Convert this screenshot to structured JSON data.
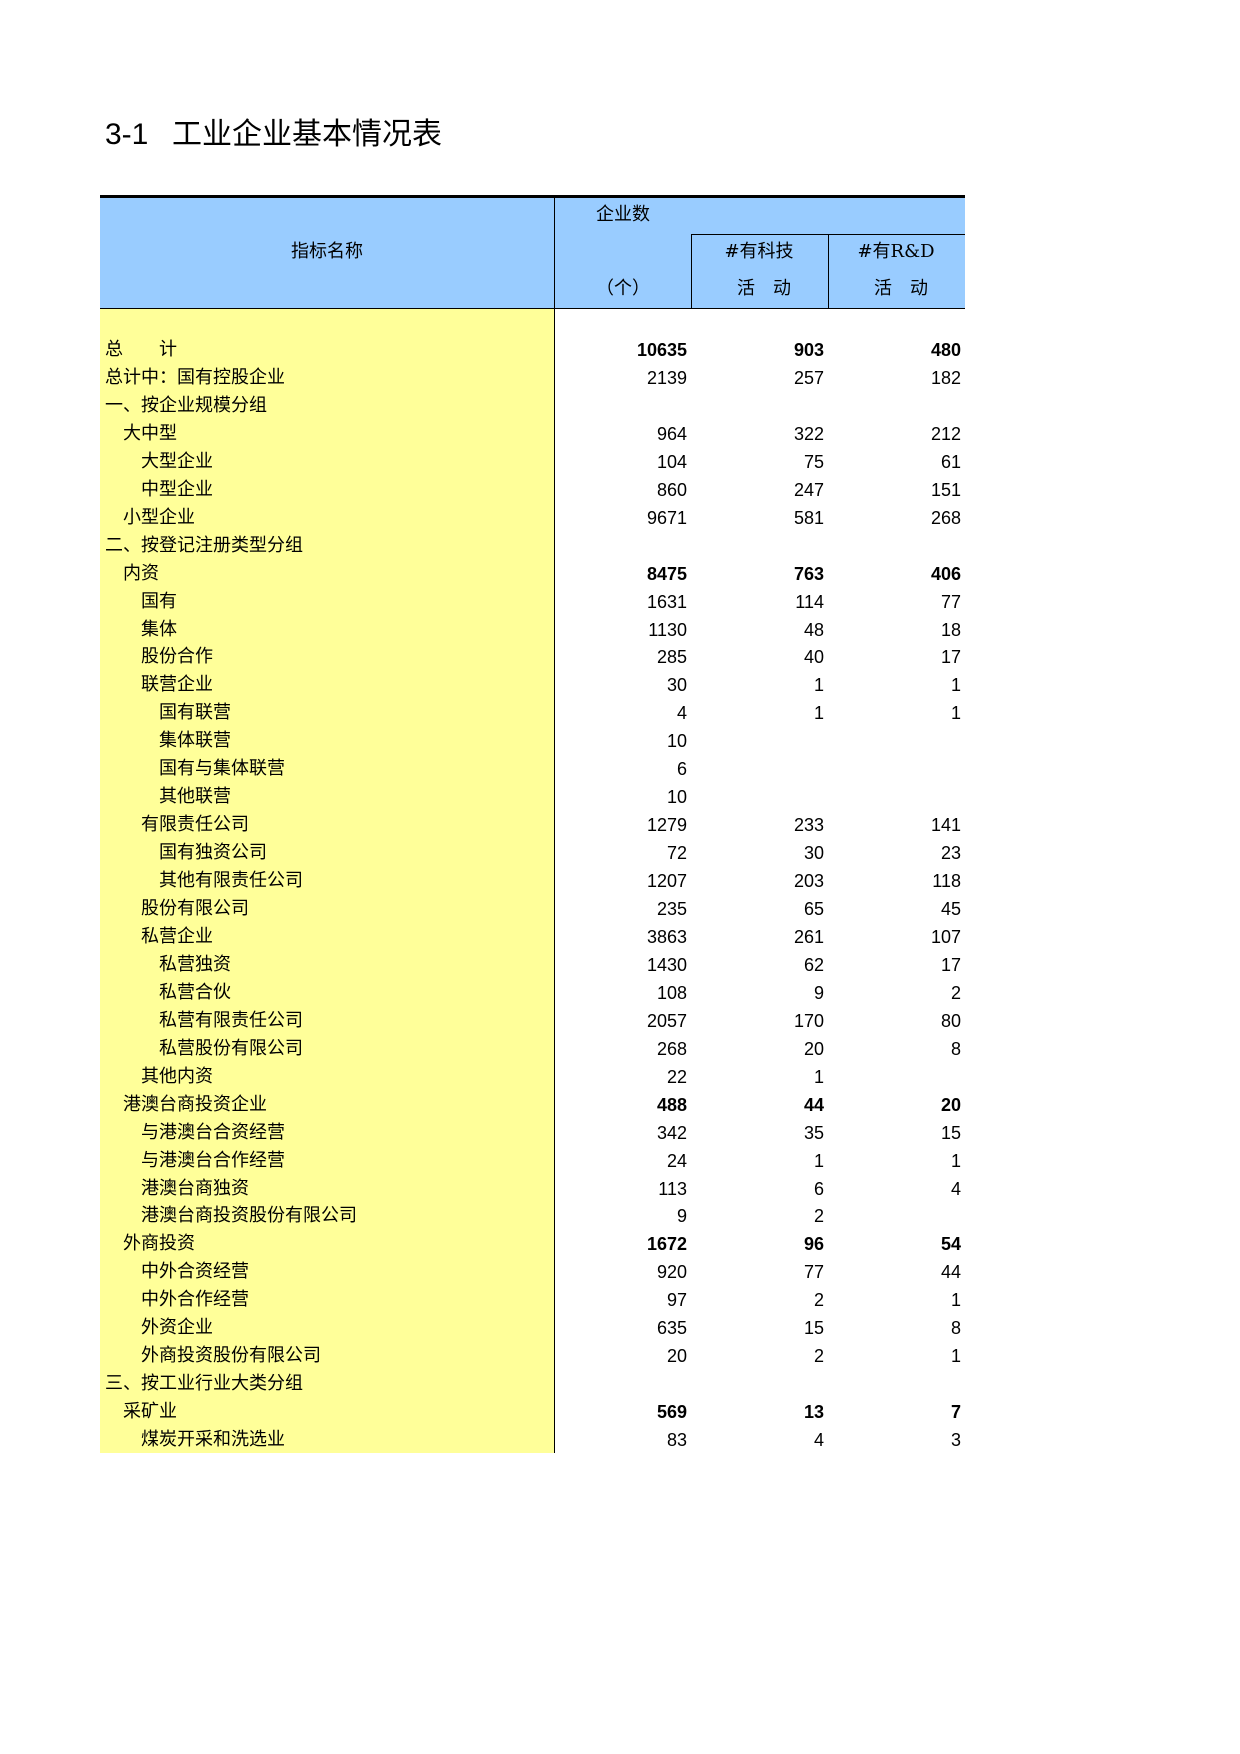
{
  "header": {
    "number": "3-1",
    "title": "工业企业基本情况表"
  },
  "table": {
    "columns": {
      "name": "指标名称",
      "count": "企业数",
      "count_unit": "（个）",
      "tech": [
        "#有科技",
        "活　动"
      ],
      "rd": [
        "#有R&D",
        "活　动"
      ]
    },
    "rows": [
      {
        "label": "总　　计",
        "values": [
          10635,
          903,
          480
        ],
        "bold": true
      },
      {
        "label": "总计中：国有控股企业",
        "values": [
          2139,
          257,
          182
        ]
      },
      {
        "label": "一、按企业规模分组",
        "values": [
          null,
          null,
          null
        ]
      },
      {
        "label": "　大中型",
        "values": [
          964,
          322,
          212
        ]
      },
      {
        "label": "　　大型企业",
        "values": [
          104,
          75,
          61
        ]
      },
      {
        "label": "　　中型企业",
        "values": [
          860,
          247,
          151
        ]
      },
      {
        "label": "　小型企业",
        "values": [
          9671,
          581,
          268
        ]
      },
      {
        "label": "二、按登记注册类型分组",
        "values": [
          null,
          null,
          null
        ]
      },
      {
        "label": "　内资",
        "values": [
          8475,
          763,
          406
        ],
        "bold": true
      },
      {
        "label": "　　国有",
        "values": [
          1631,
          114,
          77
        ]
      },
      {
        "label": "　　集体",
        "values": [
          1130,
          48,
          18
        ]
      },
      {
        "label": "　　股份合作",
        "values": [
          285,
          40,
          17
        ]
      },
      {
        "label": "　　联营企业",
        "values": [
          30,
          1,
          1
        ]
      },
      {
        "label": "　　　国有联营",
        "values": [
          4,
          1,
          1
        ]
      },
      {
        "label": "　　　集体联营",
        "values": [
          10,
          null,
          null
        ]
      },
      {
        "label": "　　　国有与集体联营",
        "values": [
          6,
          null,
          null
        ]
      },
      {
        "label": "　　　其他联营",
        "values": [
          10,
          null,
          null
        ]
      },
      {
        "label": "　　有限责任公司",
        "values": [
          1279,
          233,
          141
        ]
      },
      {
        "label": "　　　国有独资公司",
        "values": [
          72,
          30,
          23
        ]
      },
      {
        "label": "　　　其他有限责任公司",
        "values": [
          1207,
          203,
          118
        ]
      },
      {
        "label": "　　股份有限公司",
        "values": [
          235,
          65,
          45
        ]
      },
      {
        "label": "　　私营企业",
        "values": [
          3863,
          261,
          107
        ]
      },
      {
        "label": "　　　私营独资",
        "values": [
          1430,
          62,
          17
        ]
      },
      {
        "label": "　　　私营合伙",
        "values": [
          108,
          9,
          2
        ]
      },
      {
        "label": "　　　私营有限责任公司",
        "values": [
          2057,
          170,
          80
        ]
      },
      {
        "label": "　　　私营股份有限公司",
        "values": [
          268,
          20,
          8
        ]
      },
      {
        "label": "　　其他内资",
        "values": [
          22,
          1,
          null
        ]
      },
      {
        "label": "　港澳台商投资企业",
        "values": [
          488,
          44,
          20
        ],
        "bold": true
      },
      {
        "label": "　　与港澳台合资经营",
        "values": [
          342,
          35,
          15
        ]
      },
      {
        "label": "　　与港澳台合作经营",
        "values": [
          24,
          1,
          1
        ]
      },
      {
        "label": "　　港澳台商独资",
        "values": [
          113,
          6,
          4
        ]
      },
      {
        "label": "　　港澳台商投资股份有限公司",
        "values": [
          9,
          2,
          null
        ]
      },
      {
        "label": "　外商投资",
        "values": [
          1672,
          96,
          54
        ],
        "bold": true
      },
      {
        "label": "　　中外合资经营",
        "values": [
          920,
          77,
          44
        ]
      },
      {
        "label": "　　中外合作经营",
        "values": [
          97,
          2,
          1
        ]
      },
      {
        "label": "　　外资企业",
        "values": [
          635,
          15,
          8
        ]
      },
      {
        "label": "　　外商投资股份有限公司",
        "values": [
          20,
          2,
          1
        ]
      },
      {
        "label": "三、按工业行业大类分组",
        "values": [
          null,
          null,
          null
        ]
      },
      {
        "label": "　采矿业",
        "values": [
          569,
          13,
          7
        ],
        "bold": true
      },
      {
        "label": "　　煤炭开采和洗选业",
        "values": [
          83,
          4,
          3
        ]
      }
    ]
  }
}
